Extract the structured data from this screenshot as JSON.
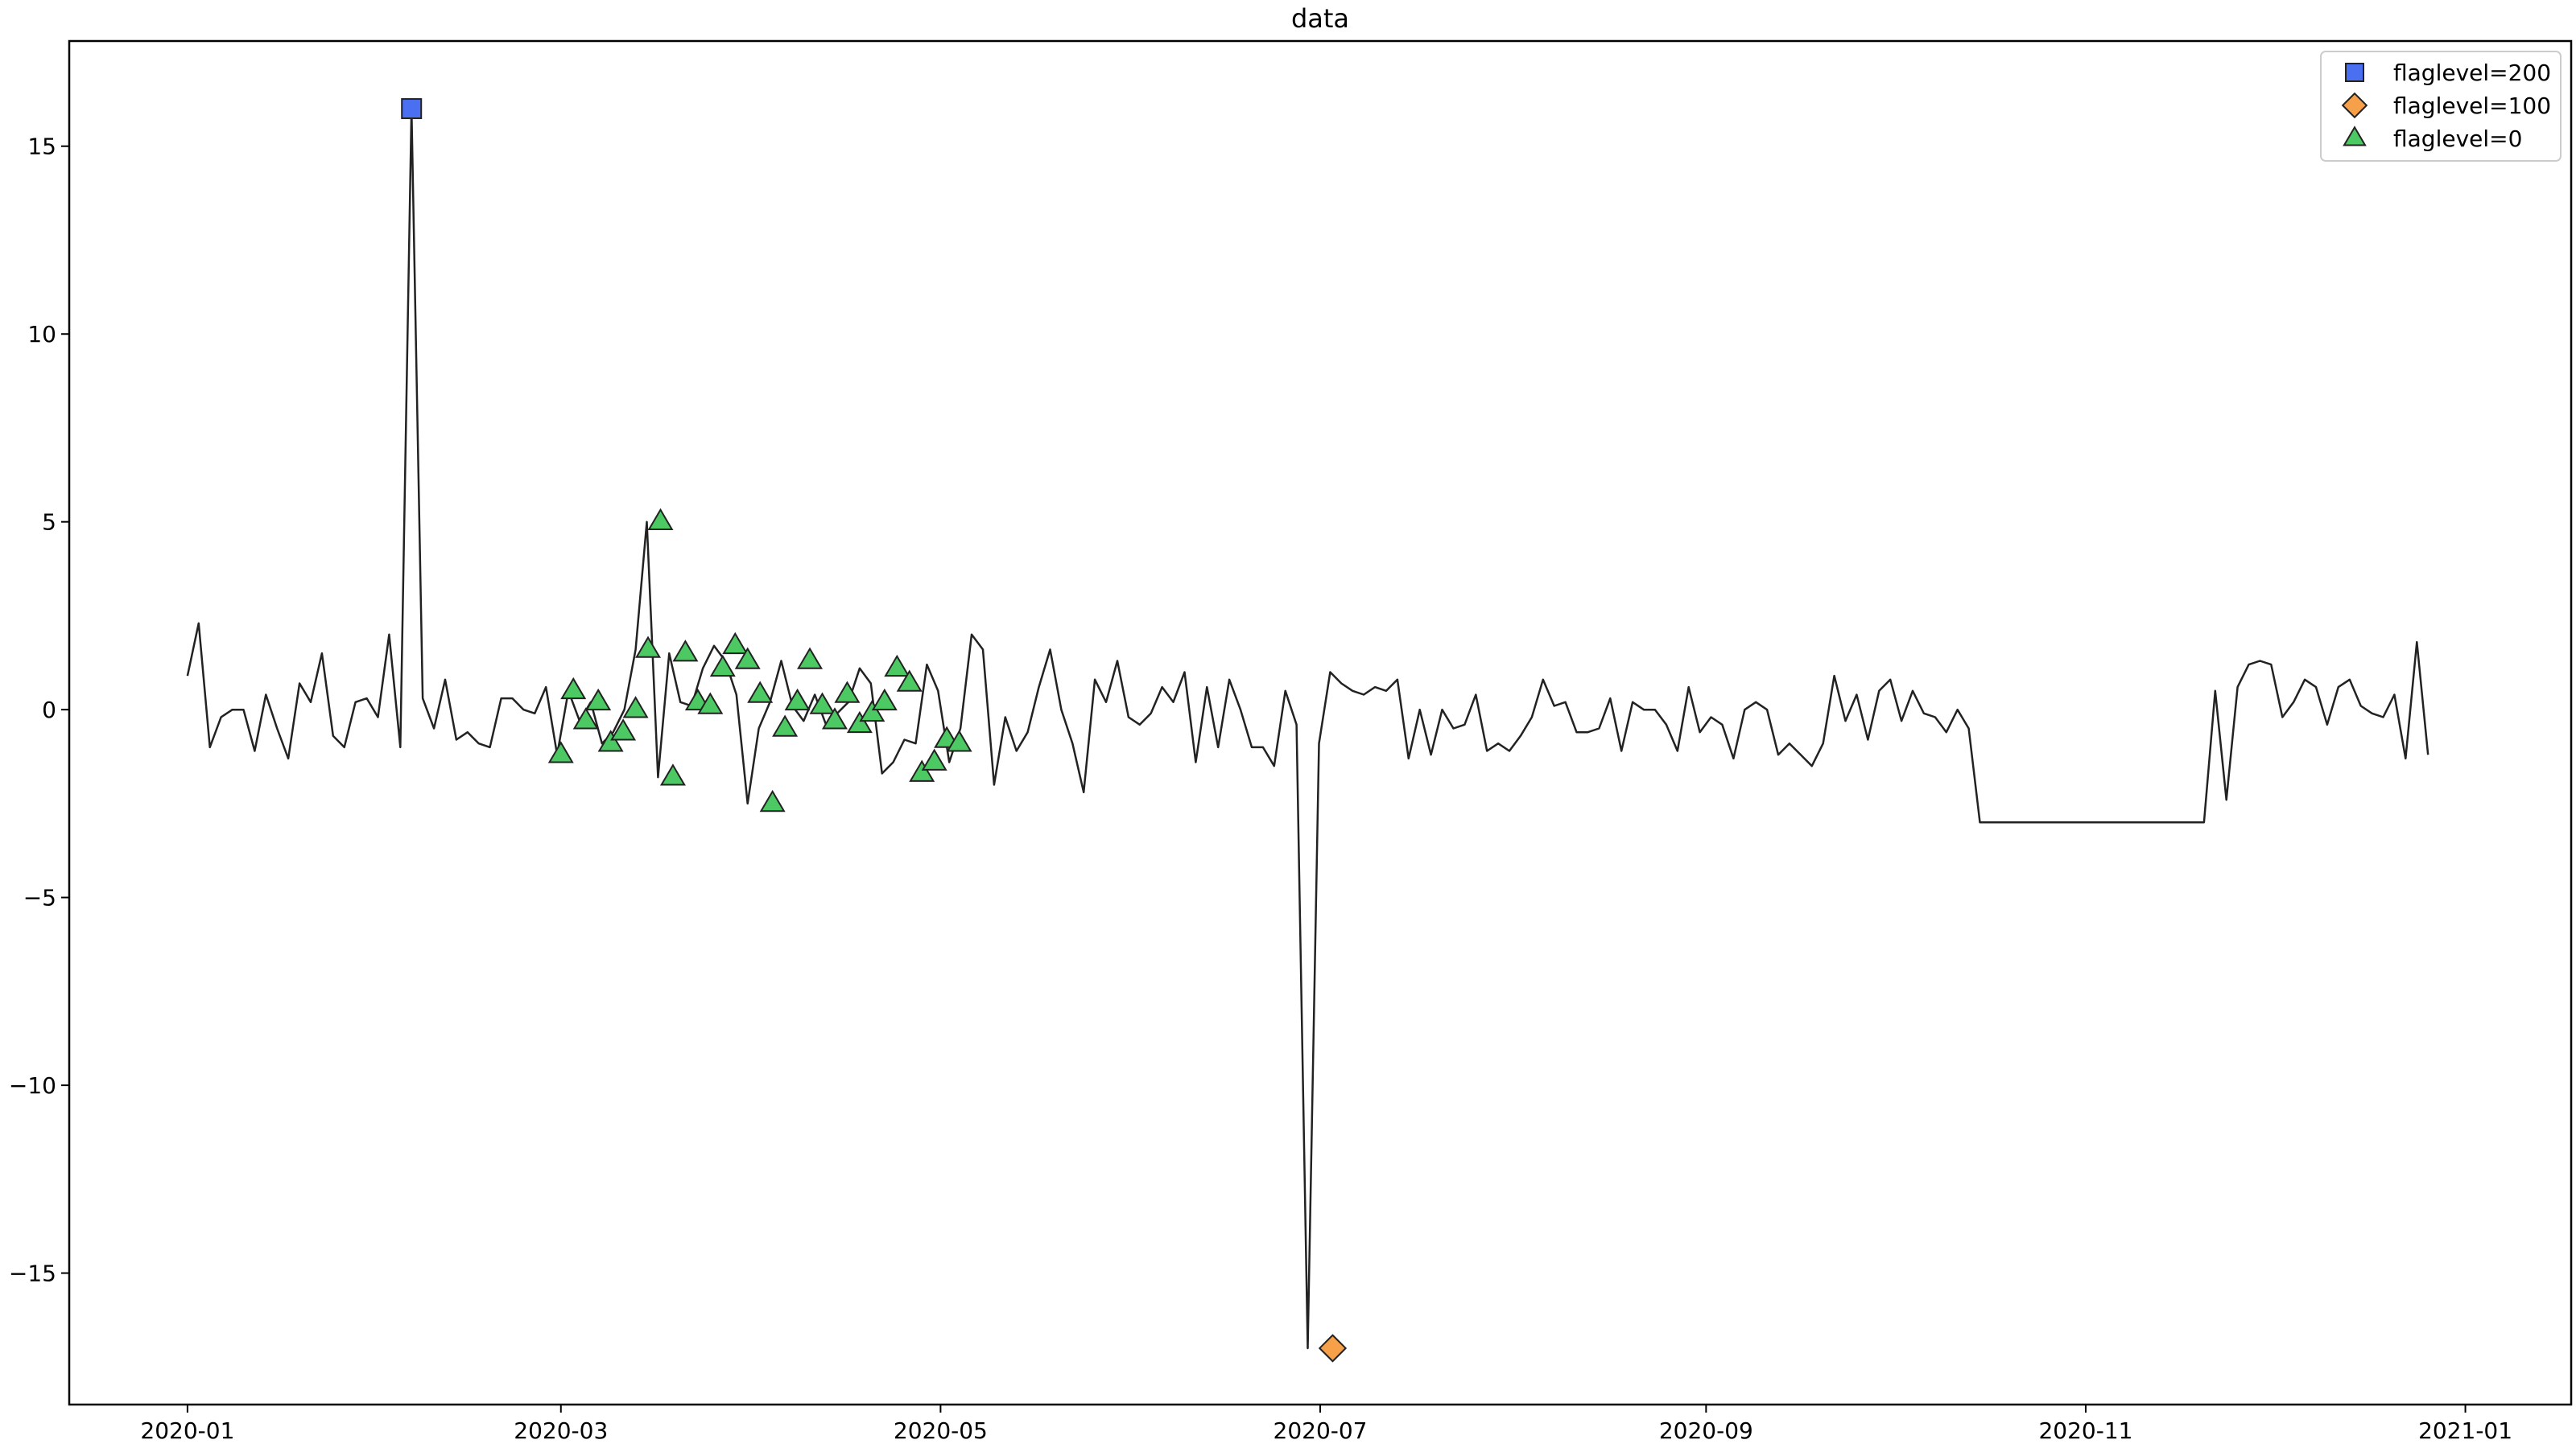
{
  "chart_data": {
    "type": "line",
    "title": "data",
    "xlabel": "",
    "ylabel": "",
    "xlim": [
      "2019-12-13",
      "2021-01-18"
    ],
    "ylim": [
      -18.5,
      17.8
    ],
    "grid": false,
    "legend_position": "top-right",
    "x_ticks": [
      {
        "date": "2020-01-01",
        "label": "2020-01"
      },
      {
        "date": "2020-03-01",
        "label": "2020-03"
      },
      {
        "date": "2020-05-01",
        "label": "2020-05"
      },
      {
        "date": "2020-07-01",
        "label": "2020-07"
      },
      {
        "date": "2020-09-01",
        "label": "2020-09"
      },
      {
        "date": "2020-11-01",
        "label": "2020-11"
      },
      {
        "date": "2021-01-01",
        "label": "2021-01"
      }
    ],
    "y_ticks": [
      {
        "value": -15,
        "label": "−15"
      },
      {
        "value": -10,
        "label": "−10"
      },
      {
        "value": -5,
        "label": "−5"
      },
      {
        "value": 0,
        "label": "0"
      },
      {
        "value": 5,
        "label": "5"
      },
      {
        "value": 10,
        "label": "10"
      },
      {
        "value": 15,
        "label": "15"
      }
    ],
    "line_color": "#222222",
    "series": [
      {
        "start_date": "2020-01-01",
        "step_days": 1.8,
        "values": [
          0.9,
          2.3,
          -1.0,
          -0.2,
          0.0,
          0.0,
          -1.1,
          0.4,
          -0.5,
          -1.3,
          0.7,
          0.2,
          1.5,
          -0.7,
          -1.0,
          0.2,
          0.3,
          -0.2,
          2.0,
          -1.0,
          16.0,
          0.3,
          -0.5,
          0.8,
          -0.8,
          -0.6,
          -0.9,
          -1.0,
          0.3,
          0.3,
          0.0,
          -0.1,
          0.6,
          -1.2,
          0.5,
          -0.3,
          0.2,
          -0.9,
          -0.6,
          0.0,
          1.6,
          5.0,
          -1.8,
          1.5,
          0.2,
          0.1,
          1.1,
          1.7,
          1.3,
          0.4,
          -2.5,
          -0.5,
          0.2,
          1.3,
          0.1,
          -0.3,
          0.4,
          -0.4,
          -0.1,
          0.2,
          1.1,
          0.7,
          -1.7,
          -1.4,
          -0.8,
          -0.9,
          1.2,
          0.5,
          -1.4,
          -0.5,
          2.0,
          1.6,
          -2.0,
          -0.2,
          -1.1,
          -0.6,
          0.6,
          1.6,
          0.0,
          -0.9,
          -2.2,
          0.8,
          0.2,
          1.3,
          -0.2,
          -0.4,
          -0.1,
          0.6,
          0.2,
          1.0,
          -1.4,
          0.6,
          -1.0,
          0.8,
          0.0,
          -1.0,
          -1.0,
          -1.5,
          0.5,
          -0.4,
          -17.0,
          -0.9,
          1.0,
          0.7,
          0.5,
          0.4,
          0.6,
          0.5,
          0.8,
          -1.3,
          0.0,
          -1.2,
          0.0,
          -0.5,
          -0.4,
          0.4,
          -1.1,
          -0.9,
          -1.1,
          -0.7,
          -0.2,
          0.8,
          0.1,
          0.2,
          -0.6,
          -0.6,
          -0.5,
          0.3,
          -1.1,
          0.2,
          0.0,
          0.0,
          -0.4,
          -1.1,
          0.6,
          -0.6,
          -0.2,
          -0.4,
          -1.3,
          0.0,
          0.2,
          0.0,
          -1.2,
          -0.9,
          -1.2,
          -1.5,
          -0.9,
          0.9,
          -0.3,
          0.4,
          -0.8,
          0.5,
          0.8,
          -0.3,
          0.5,
          -0.1,
          -0.2,
          -0.6,
          0.0,
          -0.5,
          -3.0,
          -3.0,
          -3.0,
          -3.0,
          -3.0,
          -3.0,
          -3.0,
          -3.0,
          -3.0,
          -3.0,
          -3.0,
          -3.0,
          -3.0,
          -3.0,
          -3.0,
          -3.0,
          -3.0,
          -3.0,
          -3.0,
          -3.0,
          -3.0,
          0.5,
          -2.4,
          0.6,
          1.2,
          1.3,
          1.2,
          -0.2,
          0.2,
          0.8,
          0.6,
          -0.4,
          0.6,
          0.8,
          0.1,
          -0.1,
          -0.2,
          0.4,
          -1.3,
          1.8,
          -1.2
        ]
      }
    ],
    "flag_series": [
      {
        "name": "flaglevel=200",
        "marker": "square",
        "color": "#4a6ff0",
        "points": [
          {
            "date": "2020-02-06",
            "y": 16.0
          }
        ]
      },
      {
        "name": "flaglevel=100",
        "marker": "diamond",
        "color": "#f7a04a",
        "points": [
          {
            "date": "2020-07-03",
            "y": -17.0
          }
        ]
      },
      {
        "name": "flaglevel=0",
        "marker": "triangle",
        "color": "#4dc964",
        "points": [
          {
            "date": "2020-03-01",
            "y": -1.2
          },
          {
            "date": "2020-03-03",
            "y": 0.5
          },
          {
            "date": "2020-03-05",
            "y": -0.3
          },
          {
            "date": "2020-03-07",
            "y": 0.2
          },
          {
            "date": "2020-03-09",
            "y": -0.9
          },
          {
            "date": "2020-03-11",
            "y": -0.6
          },
          {
            "date": "2020-03-13",
            "y": 0.0
          },
          {
            "date": "2020-03-15",
            "y": 1.6
          },
          {
            "date": "2020-03-17",
            "y": 5.0
          },
          {
            "date": "2020-03-19",
            "y": -1.8
          },
          {
            "date": "2020-03-21",
            "y": 1.5
          },
          {
            "date": "2020-03-23",
            "y": 0.2
          },
          {
            "date": "2020-03-25",
            "y": 0.1
          },
          {
            "date": "2020-03-27",
            "y": 1.1
          },
          {
            "date": "2020-03-29",
            "y": 1.7
          },
          {
            "date": "2020-03-31",
            "y": 1.3
          },
          {
            "date": "2020-04-02",
            "y": 0.4
          },
          {
            "date": "2020-04-04",
            "y": -2.5
          },
          {
            "date": "2020-04-06",
            "y": -0.5
          },
          {
            "date": "2020-04-08",
            "y": 0.2
          },
          {
            "date": "2020-04-10",
            "y": 1.3
          },
          {
            "date": "2020-04-12",
            "y": 0.1
          },
          {
            "date": "2020-04-14",
            "y": -0.3
          },
          {
            "date": "2020-04-16",
            "y": 0.4
          },
          {
            "date": "2020-04-18",
            "y": -0.4
          },
          {
            "date": "2020-04-20",
            "y": -0.1
          },
          {
            "date": "2020-04-22",
            "y": 0.2
          },
          {
            "date": "2020-04-24",
            "y": 1.1
          },
          {
            "date": "2020-04-26",
            "y": 0.7
          },
          {
            "date": "2020-04-28",
            "y": -1.7
          },
          {
            "date": "2020-04-30",
            "y": -1.4
          },
          {
            "date": "2020-05-02",
            "y": -0.8
          },
          {
            "date": "2020-05-04",
            "y": -0.9
          }
        ]
      }
    ]
  }
}
